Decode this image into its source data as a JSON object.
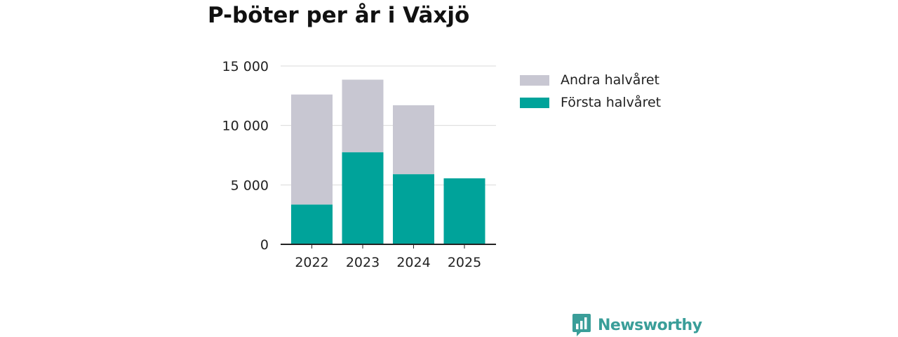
{
  "chart_data": {
    "type": "bar",
    "stacked": true,
    "title": "P-böter per år i Växjö",
    "categories": [
      "2022",
      "2023",
      "2024",
      "2025"
    ],
    "series": [
      {
        "name": "Första halvåret",
        "color": "#00a39a",
        "values": [
          3350,
          7750,
          5900,
          5550
        ]
      },
      {
        "name": "Andra halvåret",
        "color": "#c8c7d2",
        "values": [
          9250,
          6100,
          5800,
          0
        ]
      }
    ],
    "y_ticks": [
      0,
      5000,
      10000,
      15000
    ],
    "y_tick_labels": [
      "0",
      "5 000",
      "10 000",
      "15 000"
    ],
    "ylim": [
      0,
      15000
    ],
    "xlabel": "",
    "ylabel": "",
    "grid": true,
    "legend_position": "right"
  },
  "legend": {
    "items": [
      {
        "label": "Andra halvåret",
        "color": "#c8c7d2"
      },
      {
        "label": "Första halvåret",
        "color": "#00a39a"
      }
    ]
  },
  "brand": {
    "name": "Newsworthy",
    "color": "#3a9e99"
  }
}
